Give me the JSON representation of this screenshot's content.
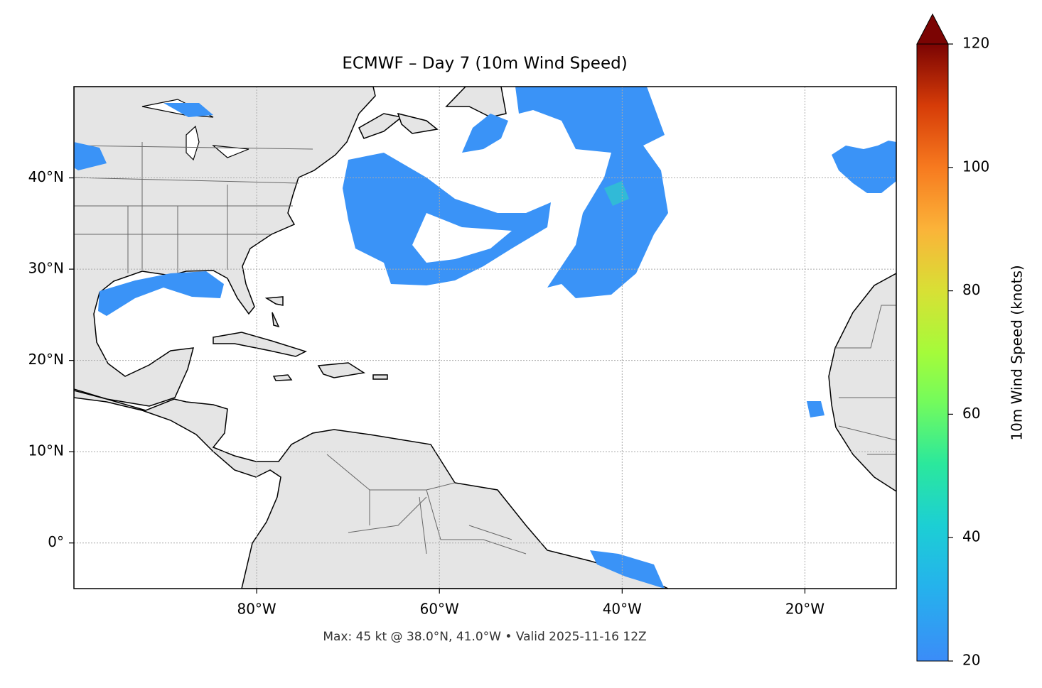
{
  "chart_data": {
    "type": "map",
    "title": "ECMWF – Day 7 (10m Wind Speed)",
    "footer": "Max: 45 kt @ 38.0°N, 41.0°W • Valid 2025-11-16 12Z",
    "xlim": [
      -100,
      -10
    ],
    "ylim": [
      -5,
      50
    ],
    "xticks": [
      {
        "value": -80,
        "label": "80°W"
      },
      {
        "value": -60,
        "label": "60°W"
      },
      {
        "value": -40,
        "label": "40°W"
      },
      {
        "value": -20,
        "label": "20°W"
      }
    ],
    "yticks": [
      {
        "value": 0,
        "label": "0°"
      },
      {
        "value": 10,
        "label": "10°N"
      },
      {
        "value": 20,
        "label": "20°N"
      },
      {
        "value": 30,
        "label": "30°N"
      },
      {
        "value": 40,
        "label": "40°N"
      }
    ],
    "grid": true,
    "colorbar": {
      "label": "10m Wind Speed (knots)",
      "lim": [
        20,
        120
      ],
      "ticks": [
        20,
        40,
        60,
        80,
        100,
        120
      ]
    }
  }
}
